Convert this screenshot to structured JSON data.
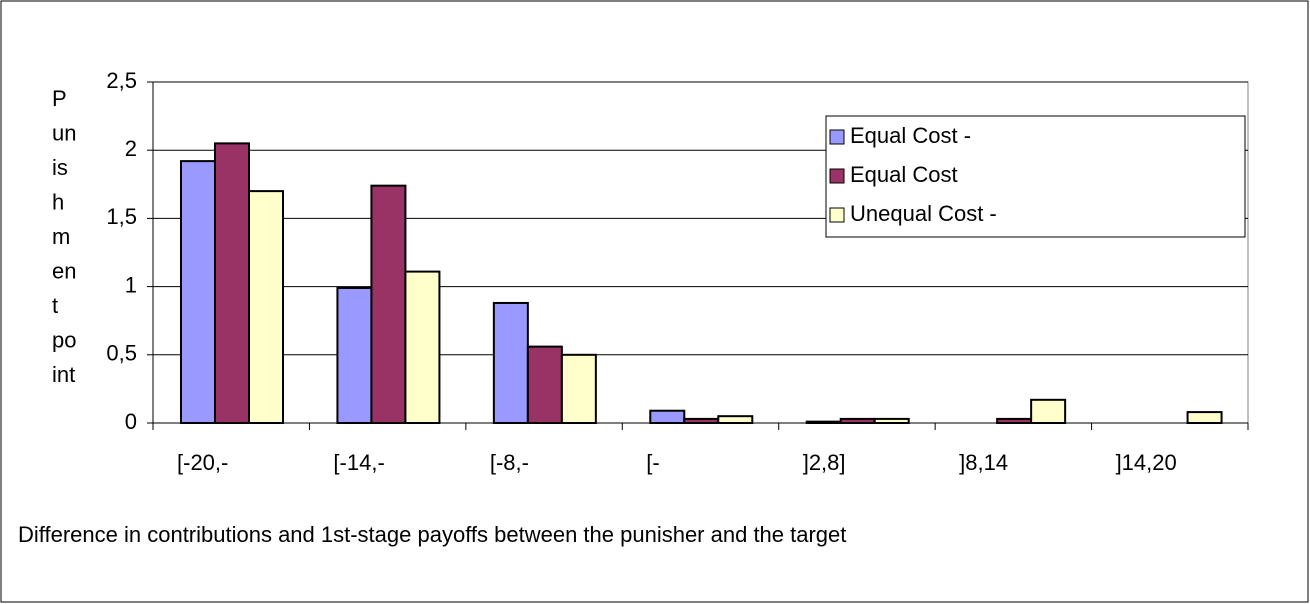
{
  "chart_data": {
    "type": "bar",
    "y_label_lines": [
      "P",
      "un",
      "is",
      "h",
      "m",
      "en",
      "t",
      "po",
      "int"
    ],
    "x_label": "Difference in contributions and 1st-stage payoffs between the punisher and the target",
    "categories": [
      "[-20,-",
      "[-14,-",
      "[-8,-",
      "[-",
      "]2,8]",
      "]8,14",
      "]14,20"
    ],
    "series": [
      {
        "name": "Equal Cost -",
        "color": "#9999ff",
        "values": [
          1.92,
          0.99,
          0.88,
          0.09,
          0.01,
          0,
          0
        ]
      },
      {
        "name": "Equal Cost",
        "color": "#993366",
        "values": [
          2.05,
          1.74,
          0.56,
          0.03,
          0.03,
          0.03,
          0
        ]
      },
      {
        "name": "Unequal Cost -",
        "color": "#ffffcc",
        "values": [
          1.7,
          1.11,
          0.5,
          0.05,
          0.03,
          0.17,
          0.08
        ]
      }
    ],
    "ylim": [
      0,
      2.5
    ],
    "yticks": [
      0,
      {
        "value": 0.5,
        "label": "0,5"
      },
      1,
      {
        "value": 1.5,
        "label": "1,5"
      },
      2,
      {
        "value": 2.5,
        "label": "2,5"
      }
    ],
    "grid": true,
    "legend": "upper right"
  }
}
